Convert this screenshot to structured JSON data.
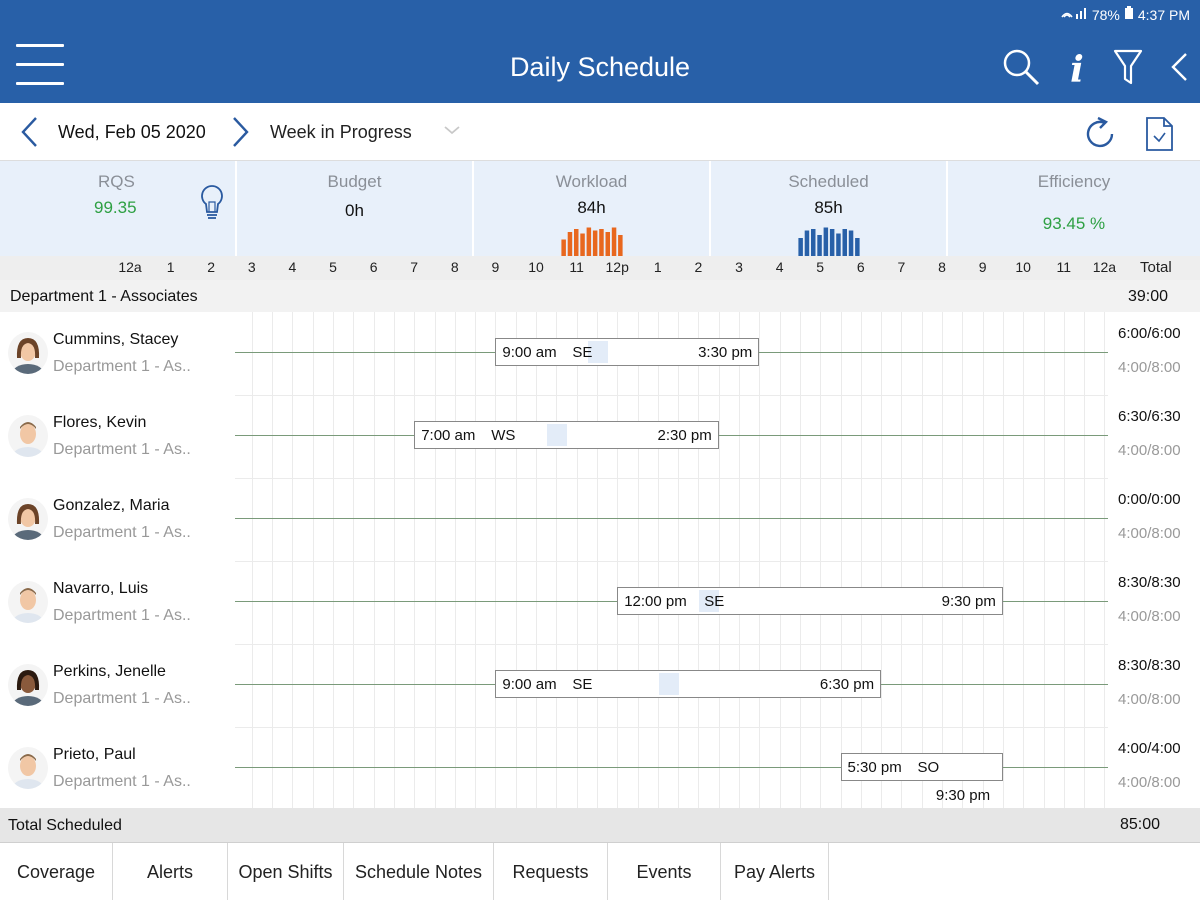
{
  "status_bar": {
    "signal": "⋮.∥",
    "battery": "78%",
    "time": "4:37 PM"
  },
  "app_bar": {
    "title": "Daily Schedule"
  },
  "date_bar": {
    "date": "Wed, Feb 05 2020",
    "period": "Week in Progress"
  },
  "metrics": {
    "rqs": {
      "label": "RQS",
      "value": "99.35"
    },
    "budget": {
      "label": "Budget",
      "value": "0h"
    },
    "workload": {
      "label": "Workload",
      "value": "84h",
      "bar_color": "#e8671e",
      "bars": [
        0.55,
        0.8,
        0.9,
        0.75,
        0.95,
        0.85,
        0.9,
        0.8,
        0.95,
        0.7
      ]
    },
    "scheduled": {
      "label": "Scheduled",
      "value": "85h",
      "bar_color": "#2860a8",
      "bars": [
        0.6,
        0.85,
        0.9,
        0.7,
        0.95,
        0.9,
        0.75,
        0.9,
        0.85,
        0.6
      ]
    },
    "efficiency": {
      "label": "Efficiency",
      "value": "93.45 %"
    }
  },
  "hours_header": {
    "ticks": [
      "12a",
      "1",
      "2",
      "3",
      "4",
      "5",
      "6",
      "7",
      "8",
      "9",
      "10",
      "11",
      "12p",
      "1",
      "2",
      "3",
      "4",
      "5",
      "6",
      "7",
      "8",
      "9",
      "10",
      "11",
      "12a"
    ],
    "total_label": "Total"
  },
  "department": {
    "name": "Department 1 - Associates",
    "total": "39:00"
  },
  "employees": [
    {
      "name": "Cummins, Stacey",
      "dept": "Department 1 - As..",
      "start": "9:00 am",
      "code": "SE",
      "end": "3:30 pm",
      "start_hour": 9.0,
      "end_hour": 15.5,
      "break_hour": 11.25,
      "paid": "6:00/6:00",
      "weekly": "4:00/8:00",
      "avatar": "female"
    },
    {
      "name": "Flores, Kevin",
      "dept": "Department 1 - As..",
      "start": "7:00 am",
      "code": "WS",
      "end": "2:30 pm",
      "start_hour": 7.0,
      "end_hour": 14.5,
      "break_hour": 10.25,
      "paid": "6:30/6:30",
      "weekly": "4:00/8:00",
      "avatar": "male"
    },
    {
      "name": "Gonzalez, Maria",
      "dept": "Department 1 - As..",
      "start": "",
      "code": "",
      "end": "",
      "paid": "0:00/0:00",
      "weekly": "4:00/8:00",
      "avatar": "female"
    },
    {
      "name": "Navarro, Luis",
      "dept": "Department 1 - As..",
      "start": "12:00 pm",
      "code": "SE",
      "end": "9:30 pm",
      "start_hour": 12.0,
      "end_hour": 21.5,
      "break_hour": 14.0,
      "paid": "8:30/8:30",
      "weekly": "4:00/8:00",
      "avatar": "male"
    },
    {
      "name": "Perkins, Jenelle",
      "dept": "Department 1 - As..",
      "start": "9:00 am",
      "code": "SE",
      "end": "6:30 pm",
      "start_hour": 9.0,
      "end_hour": 18.5,
      "break_hour": 13.0,
      "paid": "8:30/8:30",
      "weekly": "4:00/8:00",
      "avatar": "female-dark"
    },
    {
      "name": "Prieto, Paul",
      "dept": "Department 1 - As..",
      "start": "5:30 pm",
      "code": "SO",
      "end": "9:30 pm",
      "start_hour": 17.5,
      "end_hour": 21.5,
      "paid": "4:00/4:00",
      "weekly": "4:00/8:00",
      "avatar": "male"
    }
  ],
  "totals": {
    "label": "Total Scheduled",
    "value": "85:00"
  },
  "tabs": [
    "Coverage",
    "Alerts",
    "Open Shifts",
    "Schedule Notes",
    "Requests",
    "Events",
    "Pay Alerts"
  ],
  "colors": {
    "app_bar": "#2860a8",
    "metrics_bg": "#e8f0fa",
    "positive": "#2ea043"
  }
}
